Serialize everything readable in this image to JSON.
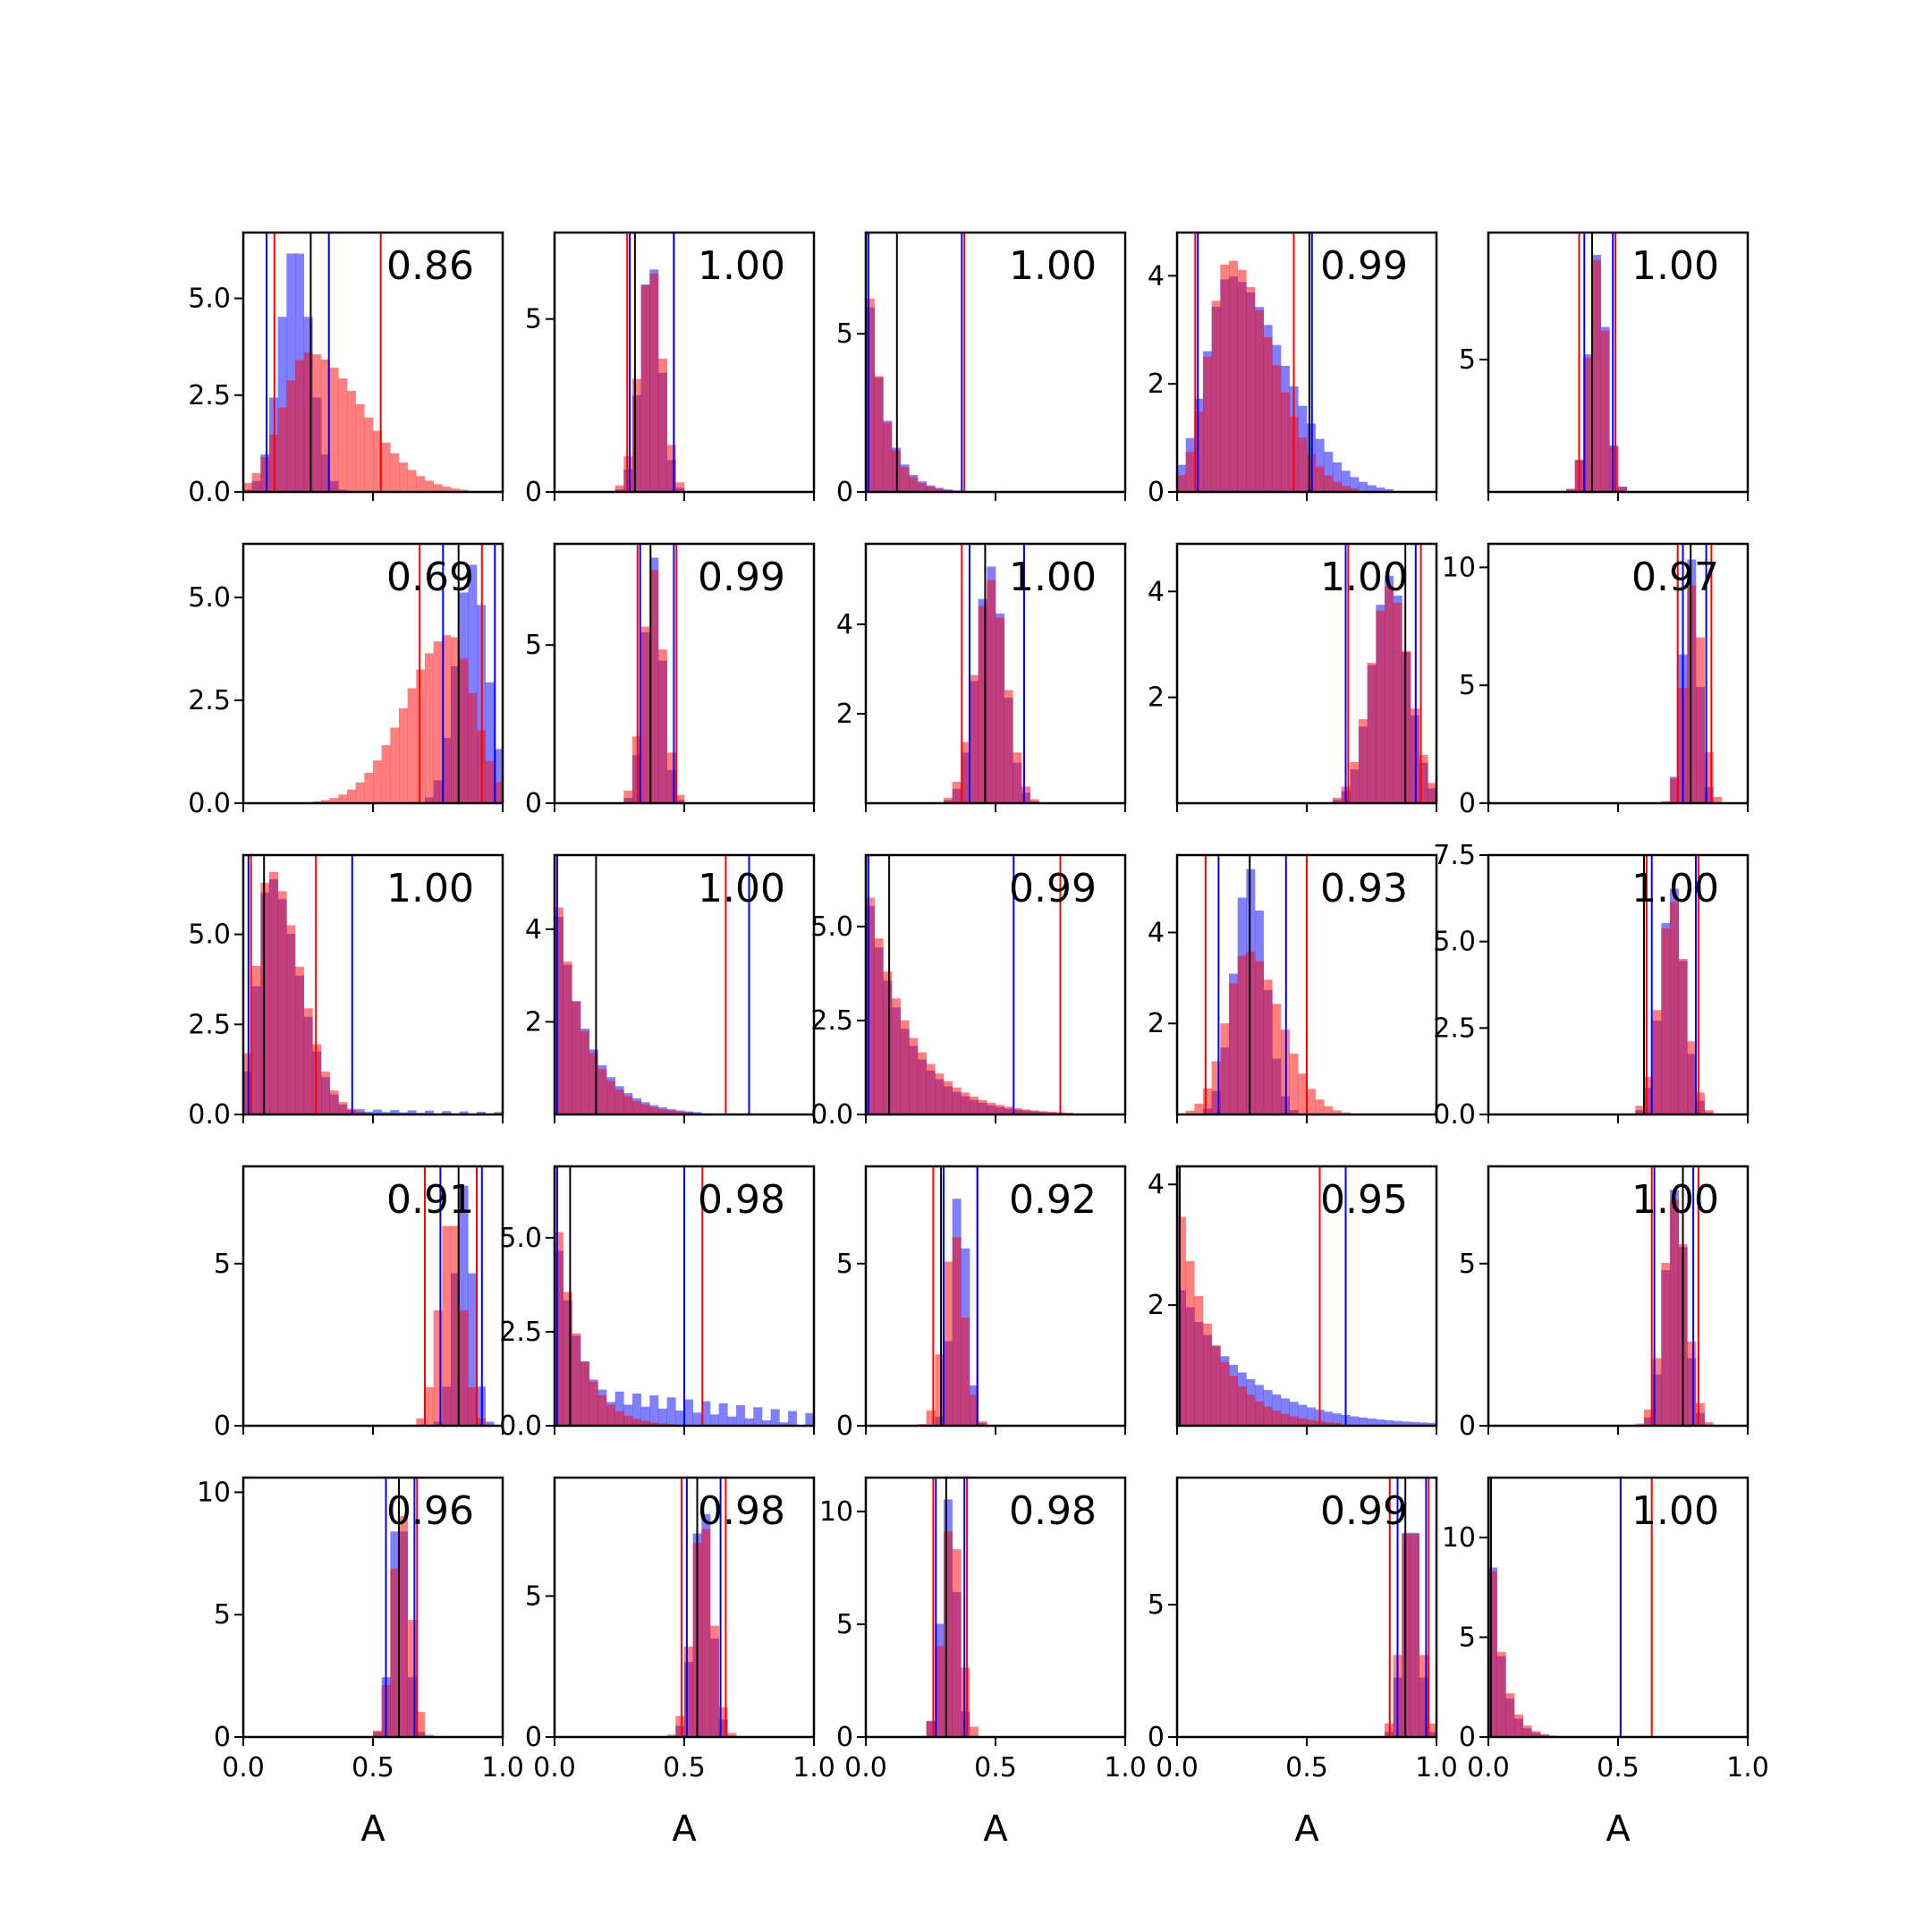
{
  "colors": {
    "series_a": "#0000ff",
    "series_b": "#ff0000",
    "overlap_line": "#000000",
    "frame": "#000000"
  },
  "x_axis_label": "A",
  "x_tick_labels": [
    "0.0",
    "0.5",
    "1.0"
  ],
  "chart_data": [
    {
      "type": "bar",
      "row": 0,
      "col": 0,
      "corr": "0.86",
      "ylim": [
        0,
        6.7
      ],
      "yticks": [
        "0.0",
        "2.5",
        "5.0"
      ],
      "ytick_values": [
        0,
        2.5,
        5.0
      ],
      "vlines": {
        "red": [
          0.12,
          0.53
        ],
        "blue": [
          0.09,
          0.33
        ],
        "black": [
          0.26
        ]
      },
      "dist": {
        "blue": {
          "m": 0.2,
          "s": 0.06,
          "p": 6.4
        },
        "red": {
          "m": 0.25,
          "s": 0.1,
          "p": 3.6,
          "sk": 1.8
        }
      }
    },
    {
      "type": "bar",
      "row": 0,
      "col": 1,
      "corr": "1.00",
      "ylim": [
        0,
        7.5
      ],
      "yticks": [
        "0",
        "5"
      ],
      "ytick_values": [
        0,
        5
      ],
      "vlines": {
        "red": [
          0.28,
          0.46
        ],
        "blue": [
          0.29,
          0.46
        ],
        "black": [
          0.31
        ]
      },
      "dist": {
        "blue": {
          "m": 0.37,
          "s": 0.04,
          "p": 6.8
        },
        "red": {
          "m": 0.37,
          "s": 0.045,
          "p": 6.6
        }
      }
    },
    {
      "type": "bar",
      "row": 0,
      "col": 2,
      "corr": "1.00",
      "ylim": [
        0,
        8.2
      ],
      "yticks": [
        "0",
        "5"
      ],
      "ytick_values": [
        0,
        5
      ],
      "vlines": {
        "red": [
          0.01,
          0.38
        ],
        "blue": [
          0.01,
          0.37
        ],
        "black": [
          0.12
        ]
      },
      "dist": {
        "blue": {
          "d": "exp",
          "p": 7.4,
          "t": 0.07
        },
        "red": {
          "d": "exp",
          "p": 7.9,
          "t": 0.065
        }
      }
    },
    {
      "type": "bar",
      "row": 0,
      "col": 3,
      "corr": "0.99",
      "ylim": [
        0,
        4.8
      ],
      "yticks": [
        "0",
        "2",
        "4"
      ],
      "ytick_values": [
        0,
        2,
        4
      ],
      "vlines": {
        "red": [
          0.07,
          0.45
        ],
        "blue": [
          0.08,
          0.52
        ],
        "black": [
          0.51
        ]
      },
      "dist": {
        "blue": {
          "m": 0.2,
          "s": 0.09,
          "p": 4.0,
          "sk": 2.2
        },
        "red": {
          "m": 0.2,
          "s": 0.08,
          "p": 4.3,
          "sk": 1.8
        }
      }
    },
    {
      "type": "bar",
      "row": 0,
      "col": 4,
      "corr": "1.00",
      "ylim": [
        0,
        9.8
      ],
      "yticks": [
        "5"
      ],
      "ytick_values": [
        5
      ],
      "vlines": {
        "red": [
          0.35,
          0.49
        ],
        "blue": [
          0.37,
          0.48
        ],
        "black": [
          0.4
        ]
      },
      "dist": {
        "blue": {
          "m": 0.42,
          "s": 0.035,
          "p": 9.0
        },
        "red": {
          "m": 0.42,
          "s": 0.035,
          "p": 8.8
        }
      }
    },
    {
      "type": "bar",
      "row": 1,
      "col": 0,
      "corr": "0.69",
      "ylim": [
        0,
        6.3
      ],
      "yticks": [
        "0.0",
        "2.5",
        "5.0"
      ],
      "ytick_values": [
        0,
        2.5,
        5.0
      ],
      "vlines": {
        "red": [
          0.68,
          0.92
        ],
        "blue": [
          0.77,
          0.97
        ],
        "black": [
          0.83
        ]
      },
      "dist": {
        "blue": {
          "m": 0.88,
          "s": 0.06,
          "p": 5.8
        },
        "red": {
          "m": 0.8,
          "s": 0.09,
          "p": 4.1,
          "sk": -1.5
        }
      }
    },
    {
      "type": "bar",
      "row": 1,
      "col": 1,
      "corr": "0.99",
      "ylim": [
        0,
        8.2
      ],
      "yticks": [
        "0",
        "5"
      ],
      "ytick_values": [
        0,
        5
      ],
      "vlines": {
        "red": [
          0.32,
          0.47
        ],
        "blue": [
          0.33,
          0.46
        ],
        "black": [
          0.37
        ]
      },
      "dist": {
        "blue": {
          "m": 0.38,
          "s": 0.035,
          "p": 7.8
        },
        "red": {
          "m": 0.38,
          "s": 0.04,
          "p": 7.4
        }
      }
    },
    {
      "type": "bar",
      "row": 1,
      "col": 2,
      "corr": "1.00",
      "ylim": [
        0,
        5.8
      ],
      "yticks": [
        "2",
        "4"
      ],
      "ytick_values": [
        2,
        4
      ],
      "vlines": {
        "red": [
          0.37,
          0.61
        ],
        "blue": [
          0.4,
          0.61
        ],
        "black": [
          0.46
        ]
      },
      "dist": {
        "blue": {
          "m": 0.48,
          "s": 0.055,
          "p": 5.3
        },
        "red": {
          "m": 0.48,
          "s": 0.06,
          "p": 5.0
        }
      }
    },
    {
      "type": "bar",
      "row": 1,
      "col": 3,
      "corr": "1.00",
      "ylim": [
        0,
        4.9
      ],
      "yticks": [
        "2",
        "4"
      ],
      "ytick_values": [
        2,
        4
      ],
      "vlines": {
        "red": [
          0.66,
          0.94
        ],
        "blue": [
          0.65,
          0.92
        ],
        "black": [
          0.88
        ]
      },
      "dist": {
        "blue": {
          "m": 0.82,
          "s": 0.07,
          "p": 4.3
        },
        "red": {
          "m": 0.82,
          "s": 0.075,
          "p": 4.1
        }
      }
    },
    {
      "type": "bar",
      "row": 1,
      "col": 4,
      "corr": "0.97",
      "ylim": [
        0,
        11
      ],
      "yticks": [
        "0",
        "5",
        "10"
      ],
      "ytick_values": [
        0,
        5,
        10
      ],
      "vlines": {
        "red": [
          0.73,
          0.86
        ],
        "blue": [
          0.75,
          0.84
        ],
        "black": [
          0.78
        ]
      },
      "dist": {
        "blue": {
          "m": 0.78,
          "s": 0.03,
          "p": 10.4
        },
        "red": {
          "m": 0.79,
          "s": 0.035,
          "p": 9.4
        }
      }
    },
    {
      "type": "bar",
      "row": 2,
      "col": 0,
      "corr": "1.00",
      "ylim": [
        0,
        7.2
      ],
      "yticks": [
        "0.0",
        "2.5",
        "5.0"
      ],
      "ytick_values": [
        0,
        2.5,
        5.0
      ],
      "vlines": {
        "red": [
          0.03,
          0.28
        ],
        "blue": [
          0.02,
          0.42
        ],
        "black": [
          0.08
        ]
      },
      "dist": {
        "blue": {
          "m": 0.1,
          "s": 0.045,
          "p": 6.6,
          "sk": 2.5
        },
        "red": {
          "m": 0.1,
          "s": 0.05,
          "p": 6.8,
          "sk": 2.2
        },
        "tail": {
          "blue": 0.25
        }
      }
    },
    {
      "type": "bar",
      "row": 2,
      "col": 1,
      "corr": "1.00",
      "ylim": [
        0,
        5.6
      ],
      "yticks": [
        "2",
        "4"
      ],
      "ytick_values": [
        2,
        4
      ],
      "vlines": {
        "red": [
          0.01,
          0.66
        ],
        "blue": [
          0.01,
          0.75
        ],
        "black": [
          0.16
        ]
      },
      "dist": {
        "blue": {
          "d": "exp",
          "p": 4.9,
          "t": 0.12
        },
        "red": {
          "d": "exp",
          "p": 5.2,
          "t": 0.11
        }
      }
    },
    {
      "type": "bar",
      "row": 2,
      "col": 2,
      "corr": "0.99",
      "ylim": [
        0,
        6.9
      ],
      "yticks": [
        "0.0",
        "2.5",
        "5.0"
      ],
      "ytick_values": [
        0,
        2.5,
        5.0
      ],
      "vlines": {
        "red": [
          0.01,
          0.75
        ],
        "blue": [
          0.01,
          0.57
        ],
        "black": [
          0.09
        ]
      },
      "dist": {
        "blue": {
          "d": "exp",
          "p": 6.2,
          "t": 0.15
        },
        "red": {
          "d": "exp",
          "p": 6.4,
          "t": 0.16
        }
      }
    },
    {
      "type": "bar",
      "row": 2,
      "col": 3,
      "corr": "0.93",
      "ylim": [
        0,
        5.7
      ],
      "yticks": [
        "2",
        "4"
      ],
      "ytick_values": [
        2,
        4
      ],
      "vlines": {
        "red": [
          0.11,
          0.5
        ],
        "blue": [
          0.16,
          0.42
        ],
        "black": [
          0.28
        ]
      },
      "dist": {
        "blue": {
          "m": 0.28,
          "s": 0.06,
          "p": 5.4
        },
        "red": {
          "m": 0.27,
          "s": 0.08,
          "p": 3.6,
          "sk": 1.0
        }
      }
    },
    {
      "type": "bar",
      "row": 2,
      "col": 4,
      "corr": "1.00",
      "ylim": [
        0,
        7.5
      ],
      "yticks": [
        "0.0",
        "2.5",
        "5.0",
        "7.5"
      ],
      "ytick_values": [
        0,
        2.5,
        5.0,
        7.5
      ],
      "vlines": {
        "red": [
          0.61,
          0.81
        ],
        "blue": [
          0.63,
          0.8
        ],
        "black": [
          0.6
        ]
      },
      "dist": {
        "blue": {
          "m": 0.71,
          "s": 0.045,
          "p": 6.6
        },
        "red": {
          "m": 0.71,
          "s": 0.05,
          "p": 6.2
        }
      }
    },
    {
      "type": "bar",
      "row": 3,
      "col": 0,
      "corr": "0.91",
      "ylim": [
        0,
        8.0
      ],
      "yticks": [
        "0",
        "5"
      ],
      "ytick_values": [
        0,
        5
      ],
      "vlines": {
        "red": [
          0.7,
          0.9
        ],
        "blue": [
          0.76,
          0.92
        ],
        "black": [
          0.83
        ]
      },
      "dist": {
        "blue": {
          "m": 0.85,
          "s": 0.035,
          "p": 7.4
        },
        "red": {
          "m": 0.8,
          "s": 0.045,
          "p": 6.6
        }
      }
    },
    {
      "type": "bar",
      "row": 3,
      "col": 1,
      "corr": "0.98",
      "ylim": [
        0,
        6.9
      ],
      "yticks": [
        "0.0",
        "2.5",
        "5.0"
      ],
      "ytick_values": [
        0,
        2.5,
        5.0
      ],
      "vlines": {
        "red": [
          0.01,
          0.57
        ],
        "blue": [
          0.01,
          0.5
        ],
        "black": [
          0.06
        ]
      },
      "dist": {
        "blue": {
          "d": "exp",
          "p": 5.5,
          "t": 0.1
        },
        "red": {
          "d": "exp",
          "p": 6.2,
          "t": 0.09
        },
        "tail": {
          "blue": 1.3
        }
      }
    },
    {
      "type": "bar",
      "row": 3,
      "col": 2,
      "corr": "0.92",
      "ylim": [
        0,
        8.0
      ],
      "yticks": [
        "0",
        "5"
      ],
      "ytick_values": [
        0,
        5
      ],
      "vlines": {
        "red": [
          0.26,
          0.43
        ],
        "blue": [
          0.3,
          0.43
        ],
        "black": [
          0.29
        ]
      },
      "dist": {
        "blue": {
          "m": 0.36,
          "s": 0.03,
          "p": 7.4
        },
        "red": {
          "m": 0.34,
          "s": 0.04,
          "p": 6.0
        }
      }
    },
    {
      "type": "bar",
      "row": 3,
      "col": 3,
      "corr": "0.95",
      "ylim": [
        0,
        4.3
      ],
      "yticks": [
        "2",
        "4"
      ],
      "ytick_values": [
        2,
        4
      ],
      "vlines": {
        "red": [
          0.01,
          0.55
        ],
        "blue": [
          0.01,
          0.65
        ],
        "black": [
          0.01
        ]
      },
      "dist": {
        "blue": {
          "d": "exp",
          "p": 2.4,
          "t": 0.25
        },
        "red": {
          "d": "exp",
          "p": 3.9,
          "t": 0.14
        }
      }
    },
    {
      "type": "bar",
      "row": 3,
      "col": 4,
      "corr": "1.00",
      "ylim": [
        0,
        8.0
      ],
      "yticks": [
        "0",
        "5"
      ],
      "ytick_values": [
        0,
        5
      ],
      "vlines": {
        "red": [
          0.63,
          0.81
        ],
        "blue": [
          0.64,
          0.79
        ],
        "black": [
          0.75
        ]
      },
      "dist": {
        "blue": {
          "m": 0.72,
          "s": 0.04,
          "p": 7.3
        },
        "red": {
          "m": 0.72,
          "s": 0.045,
          "p": 7.0
        }
      }
    },
    {
      "type": "bar",
      "row": 4,
      "col": 0,
      "corr": "0.96",
      "ylim": [
        0,
        10.6
      ],
      "yticks": [
        "0",
        "5",
        "10"
      ],
      "ytick_values": [
        0,
        5,
        10
      ],
      "vlines": {
        "red": [
          0.55,
          0.67
        ],
        "blue": [
          0.55,
          0.66
        ],
        "black": [
          0.6
        ]
      },
      "dist": {
        "blue": {
          "m": 0.6,
          "s": 0.03,
          "p": 9.8
        },
        "red": {
          "m": 0.61,
          "s": 0.035,
          "p": 9.2
        }
      }
    },
    {
      "type": "bar",
      "row": 4,
      "col": 1,
      "corr": "0.98",
      "ylim": [
        0,
        9.2
      ],
      "yticks": [
        "0",
        "5"
      ],
      "ytick_values": [
        0,
        5
      ],
      "vlines": {
        "red": [
          0.49,
          0.66
        ],
        "blue": [
          0.51,
          0.64
        ],
        "black": [
          0.55
        ]
      },
      "dist": {
        "blue": {
          "m": 0.57,
          "s": 0.035,
          "p": 8.5
        },
        "red": {
          "m": 0.57,
          "s": 0.04,
          "p": 7.8
        }
      }
    },
    {
      "type": "bar",
      "row": 4,
      "col": 2,
      "corr": "0.98",
      "ylim": [
        0,
        11.5
      ],
      "yticks": [
        "0",
        "5",
        "10"
      ],
      "ytick_values": [
        0,
        5,
        10
      ],
      "vlines": {
        "red": [
          0.26,
          0.39
        ],
        "blue": [
          0.27,
          0.38
        ],
        "black": [
          0.31
        ]
      },
      "dist": {
        "blue": {
          "m": 0.32,
          "s": 0.03,
          "p": 10.6
        },
        "red": {
          "m": 0.33,
          "s": 0.035,
          "p": 9.8
        }
      }
    },
    {
      "type": "bar",
      "row": 4,
      "col": 3,
      "corr": "0.99",
      "ylim": [
        0,
        9.8
      ],
      "yticks": [
        "0",
        "5"
      ],
      "ytick_values": [
        0,
        5
      ],
      "vlines": {
        "red": [
          0.82,
          0.97
        ],
        "blue": [
          0.85,
          0.96
        ],
        "black": [
          0.88
        ]
      },
      "dist": {
        "blue": {
          "m": 0.9,
          "s": 0.03,
          "p": 9.0
        },
        "red": {
          "m": 0.9,
          "s": 0.035,
          "p": 8.6
        }
      }
    },
    {
      "type": "bar",
      "row": 4,
      "col": 4,
      "corr": "1.00",
      "ylim": [
        0,
        13.0
      ],
      "yticks": [
        "0",
        "5",
        "10"
      ],
      "ytick_values": [
        0,
        5,
        10
      ],
      "vlines": {
        "red": [
          0.01,
          0.63
        ],
        "blue": [
          0.01,
          0.51
        ],
        "black": [
          0.01
        ]
      },
      "dist": {
        "blue": {
          "d": "exp",
          "p": 12.3,
          "t": 0.045
        },
        "red": {
          "d": "exp",
          "p": 11.6,
          "t": 0.05
        }
      }
    }
  ]
}
